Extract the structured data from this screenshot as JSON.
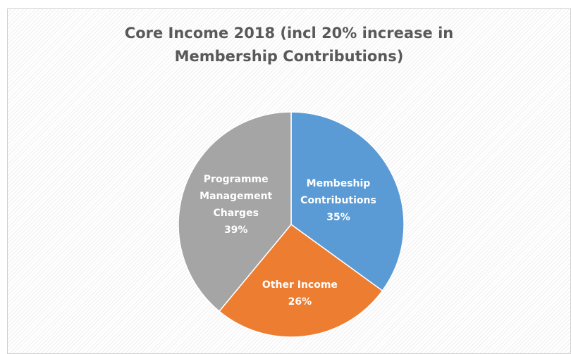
{
  "chart_data": {
    "type": "pie",
    "title": "Core Income 2018 (incl 20% increase in Membership Contributions)",
    "categories": [
      "Membeship Contributions",
      "Other Income",
      "Programme Management Charges"
    ],
    "values": [
      35,
      26,
      39
    ],
    "value_labels": [
      "35%",
      "26%",
      "39%"
    ],
    "colors": [
      "#5b9bd5",
      "#ed7d31",
      "#a5a5a5"
    ]
  }
}
